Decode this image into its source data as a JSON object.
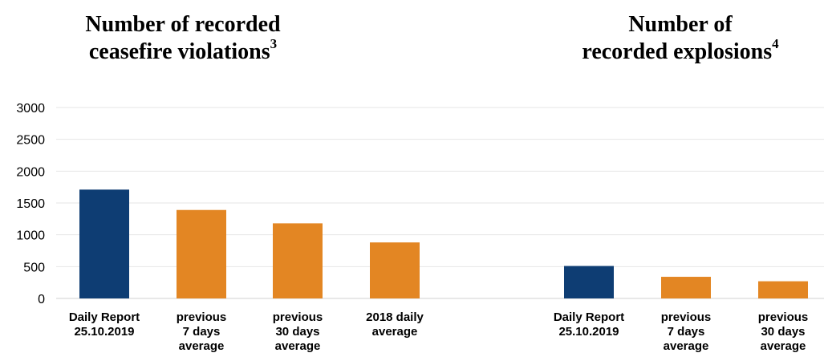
{
  "colors": {
    "daily": "#0e3d73",
    "average": "#e38623",
    "grid": "#e6e6e6"
  },
  "chart_data": {
    "type": "bar",
    "ylim": [
      0,
      3000
    ],
    "yticks": [
      0,
      500,
      1000,
      1500,
      2000,
      2500,
      3000
    ],
    "grid": true,
    "panels": [
      {
        "title": {
          "lines": [
            "Number of recorded",
            "ceasefire violations"
          ],
          "footnote": "3"
        },
        "categories": [
          [
            "Daily Report",
            "25.10.2019"
          ],
          [
            "previous",
            "7 days",
            "average"
          ],
          [
            "previous",
            "30 days",
            "average"
          ],
          [
            "2018 daily",
            "average"
          ]
        ],
        "values": [
          1710,
          1390,
          1180,
          880
        ],
        "bar_colors": [
          "daily",
          "average",
          "average",
          "average"
        ]
      },
      {
        "title": {
          "lines": [
            "Number of",
            "recorded explosions"
          ],
          "footnote": "4"
        },
        "categories": [
          [
            "Daily Report",
            "25.10.2019"
          ],
          [
            "previous",
            "7 days",
            "average"
          ],
          [
            "previous",
            "30 days",
            "average"
          ]
        ],
        "values": [
          510,
          340,
          270
        ],
        "bar_colors": [
          "daily",
          "average",
          "average"
        ]
      }
    ]
  }
}
